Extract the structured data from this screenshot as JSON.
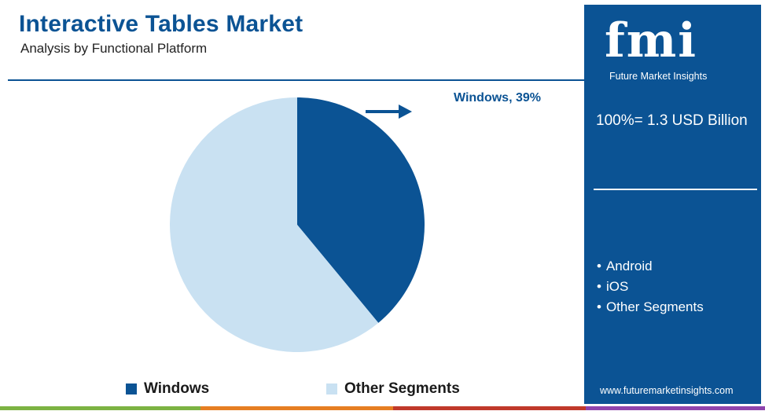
{
  "header": {
    "title": "Interactive Tables Market",
    "subtitle": "Analysis by Functional Platform"
  },
  "chart_data": {
    "type": "pie",
    "categories": [
      "Windows",
      "Other Segments"
    ],
    "values": [
      39,
      61
    ],
    "unit": "%",
    "callout": "Windows, 39%",
    "legend": [
      "Windows",
      "Other Segments"
    ],
    "legend_placement": "bottom",
    "colors": [
      "#0b5394",
      "#c9e1f2"
    ]
  },
  "sidebar": {
    "logo_letters": "fmi",
    "logo_subtitle": "Future Market Insights",
    "total": "100%= 1.3 USD Billion",
    "segments": [
      "Android",
      "iOS",
      "Other Segments"
    ],
    "website": "www.futuremarketinsights.com"
  },
  "colors": {
    "brand_blue": "#0b5394",
    "light_blue": "#c9e1f2",
    "strip": [
      "#7cb342",
      "#e67e22",
      "#c0392b",
      "#8e44ad",
      "#0b5394"
    ]
  }
}
